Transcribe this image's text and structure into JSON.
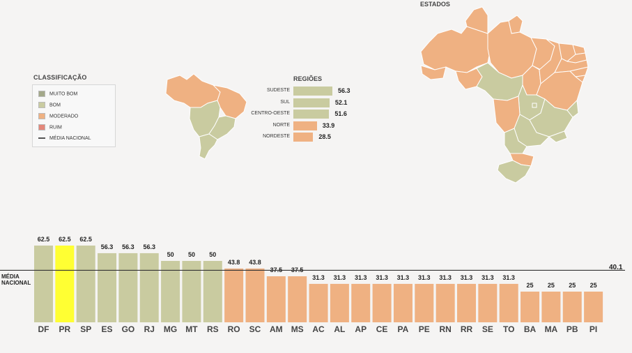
{
  "legend": {
    "title": "CLASSIFICAÇÃO",
    "items": [
      {
        "label": "MUITO BOM",
        "color": "#a3a889"
      },
      {
        "label": "BOM",
        "color": "#c9cba0"
      },
      {
        "label": "MODERADO",
        "color": "#efb182"
      },
      {
        "label": "RUIM",
        "color": "#e4877a"
      }
    ],
    "line_label": "MÉDIA NACIONAL"
  },
  "regions": {
    "title": "REGIÕES",
    "items": [
      {
        "label": "SUDESTE",
        "value": 56.3,
        "display": "56.3",
        "color": "#c9cba0"
      },
      {
        "label": "SUL",
        "value": 52.1,
        "display": "52.1",
        "color": "#c9cba0"
      },
      {
        "label": "CENTRO-OESTE",
        "value": 51.6,
        "display": "51.6",
        "color": "#c9cba0"
      },
      {
        "label": "NORTE",
        "value": 33.9,
        "display": "33.9",
        "color": "#efb182"
      },
      {
        "label": "NORDESTE",
        "value": 28.5,
        "display": "28.5",
        "color": "#efb182"
      }
    ]
  },
  "states_map": {
    "label": "ESTADOS"
  },
  "chart_data": {
    "type": "bar",
    "categories": [
      "DF",
      "PR",
      "SP",
      "ES",
      "GO",
      "RJ",
      "MG",
      "MT",
      "RS",
      "RO",
      "SC",
      "AM",
      "MS",
      "AC",
      "AL",
      "AP",
      "CE",
      "PA",
      "PE",
      "RN",
      "RR",
      "SE",
      "TO",
      "BA",
      "MA",
      "PB",
      "PI"
    ],
    "values": [
      62.5,
      62.5,
      62.5,
      56.3,
      56.3,
      56.3,
      50,
      50,
      50,
      43.8,
      43.8,
      37.5,
      37.5,
      31.3,
      31.3,
      31.3,
      31.3,
      31.3,
      31.3,
      31.3,
      31.3,
      31.3,
      31.3,
      25,
      25,
      25,
      25
    ],
    "value_labels": [
      "62.5",
      "62.5",
      "62.5",
      "56.3",
      "56.3",
      "56.3",
      "50",
      "50",
      "50",
      "43.8",
      "43.8",
      "37.5",
      "37.5",
      "31.3",
      "31.3",
      "31.3",
      "31.3",
      "31.3",
      "31.3",
      "31.3",
      "31.3",
      "31.3",
      "31.3",
      "25",
      "25",
      "25",
      "25"
    ],
    "colors": [
      "#c9cba0",
      "#ffff33",
      "#c9cba0",
      "#c9cba0",
      "#c9cba0",
      "#c9cba0",
      "#c9cba0",
      "#c9cba0",
      "#c9cba0",
      "#efb182",
      "#efb182",
      "#efb182",
      "#efb182",
      "#efb182",
      "#efb182",
      "#efb182",
      "#efb182",
      "#efb182",
      "#efb182",
      "#efb182",
      "#efb182",
      "#efb182",
      "#efb182",
      "#efb182",
      "#efb182",
      "#efb182",
      "#efb182"
    ],
    "reference_line": {
      "label": "MÉDIA NACIONAL",
      "value": 40.1,
      "display": "40.1"
    },
    "ylim": [
      0,
      62.5
    ]
  }
}
